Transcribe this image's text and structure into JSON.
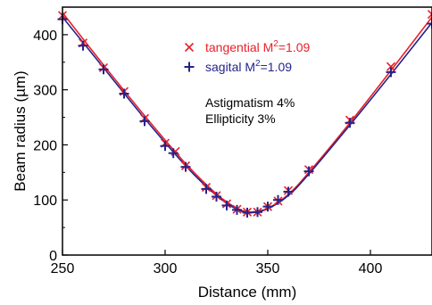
{
  "chart_data": {
    "type": "scatter",
    "xlabel_prefix": "Distance (mm)",
    "ylabel": "Beam radius (µm)",
    "xlim": [
      250,
      430
    ],
    "ylim": [
      0,
      450
    ],
    "xticks": [
      250,
      300,
      350,
      400
    ],
    "yticks": [
      0,
      100,
      200,
      300,
      400
    ],
    "grid": false,
    "legend_position": "top-center",
    "series": [
      {
        "name": "tangential",
        "legend_prefix": "tangential M",
        "legend_sup": "2",
        "legend_suffix": "=1.09",
        "marker": "x",
        "color": "#e8202a",
        "points": [
          [
            250,
            435
          ],
          [
            260,
            385
          ],
          [
            270,
            340
          ],
          [
            280,
            297
          ],
          [
            290,
            248
          ],
          [
            300,
            203
          ],
          [
            305,
            188
          ],
          [
            310,
            162
          ],
          [
            320,
            123
          ],
          [
            325,
            108
          ],
          [
            330,
            93
          ],
          [
            335,
            83
          ],
          [
            340,
            78
          ],
          [
            345,
            78
          ],
          [
            350,
            88
          ],
          [
            355,
            98
          ],
          [
            360,
            117
          ],
          [
            370,
            155
          ],
          [
            390,
            245
          ],
          [
            410,
            342
          ],
          [
            430,
            437
          ]
        ],
        "fit": [
          [
            250,
            440
          ],
          [
            270,
            345
          ],
          [
            290,
            253
          ],
          [
            310,
            166
          ],
          [
            325,
            111
          ],
          [
            335,
            85
          ],
          [
            342,
            78
          ],
          [
            350,
            85
          ],
          [
            360,
            110
          ],
          [
            370,
            150
          ],
          [
            390,
            240
          ],
          [
            410,
            335
          ],
          [
            430,
            432
          ]
        ]
      },
      {
        "name": "sagital",
        "legend_prefix": "sagital M",
        "legend_sup": "2",
        "legend_suffix": "=1.09",
        "marker": "+",
        "color": "#24248a",
        "points": [
          [
            250,
            428
          ],
          [
            260,
            380
          ],
          [
            270,
            337
          ],
          [
            280,
            293
          ],
          [
            290,
            243
          ],
          [
            300,
            198
          ],
          [
            304,
            185
          ],
          [
            310,
            160
          ],
          [
            320,
            120
          ],
          [
            325,
            106
          ],
          [
            330,
            90
          ],
          [
            335,
            82
          ],
          [
            340,
            77
          ],
          [
            345,
            78
          ],
          [
            350,
            88
          ],
          [
            355,
            100
          ],
          [
            360,
            115
          ],
          [
            370,
            152
          ],
          [
            390,
            240
          ],
          [
            410,
            332
          ],
          [
            430,
            420
          ]
        ],
        "fit": [
          [
            250,
            432
          ],
          [
            270,
            340
          ],
          [
            290,
            248
          ],
          [
            310,
            162
          ],
          [
            325,
            108
          ],
          [
            335,
            83
          ],
          [
            342,
            77
          ],
          [
            350,
            84
          ],
          [
            360,
            108
          ],
          [
            370,
            147
          ],
          [
            390,
            236
          ],
          [
            410,
            328
          ],
          [
            430,
            422
          ]
        ]
      }
    ],
    "annotations": [
      "Astigmatism 4%",
      "Ellipticity 3%"
    ]
  }
}
